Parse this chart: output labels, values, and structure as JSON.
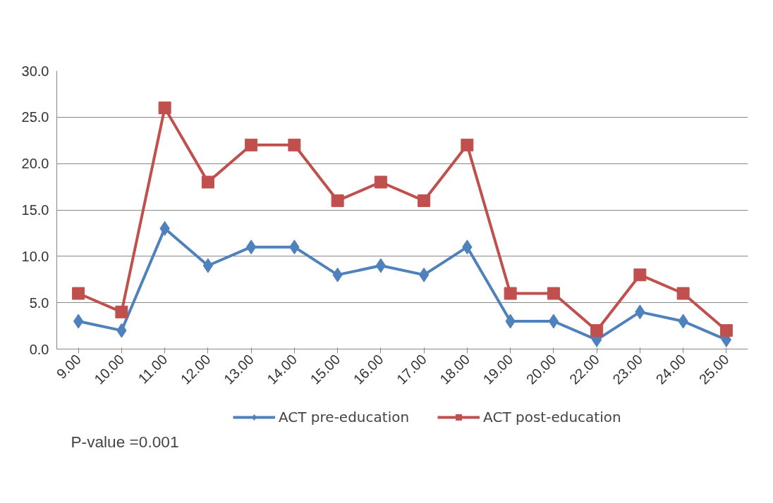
{
  "chart_data": {
    "type": "line",
    "categories": [
      "9.00",
      "10.00",
      "11.00",
      "12.00",
      "13.00",
      "14.00",
      "15.00",
      "16.00",
      "17.00",
      "18.00",
      "19.00",
      "20.00",
      "22.00",
      "23.00",
      "24.00",
      "25.00"
    ],
    "series": [
      {
        "name": "ACT pre-education",
        "color": "#4f81bd",
        "marker": "diamond",
        "values": [
          3,
          2,
          13,
          9,
          11,
          11,
          8,
          9,
          8,
          11,
          3,
          3,
          1,
          4,
          3,
          1
        ]
      },
      {
        "name": "ACT post-education",
        "color": "#c0504d",
        "marker": "square",
        "values": [
          6,
          4,
          26,
          18,
          22,
          22,
          16,
          18,
          16,
          22,
          6,
          6,
          2,
          8,
          6,
          2
        ]
      }
    ],
    "ylim": [
      0,
      30
    ],
    "yticks": [
      {
        "value": 0,
        "label": "0.0"
      },
      {
        "value": 5,
        "label": "5.0"
      },
      {
        "value": 10,
        "label": "10.0"
      },
      {
        "value": 15,
        "label": "15.0"
      },
      {
        "value": 20,
        "label": "20.0"
      },
      {
        "value": 25,
        "label": "25.0"
      },
      {
        "value": 30,
        "label": "30.0"
      }
    ],
    "grid": "y",
    "legend": "bottom",
    "line_style": "solid",
    "annotations": [
      "P-value =0.001"
    ]
  }
}
